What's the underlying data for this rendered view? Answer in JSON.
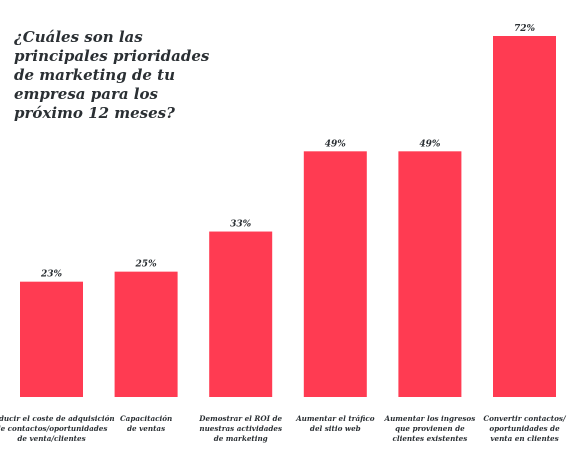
{
  "chart_data": {
    "type": "bar",
    "title": "¿Cuáles son las principales prioridades de marketing de tu empresa para los próximo 12 meses?",
    "xlabel": "",
    "ylabel": "",
    "ylim": [
      0,
      72
    ],
    "grid": false,
    "legend": "none",
    "bar_color": "#ff3b52",
    "text_color": "#2a2f33",
    "categories": [
      [
        "Reducir el coste de adquisición",
        "de contactos/oportunidades",
        "de venta/clientes"
      ],
      [
        "Capacitación",
        "de ventas"
      ],
      [
        "Demostrar el ROI de",
        "nuestras actividades",
        "de marketing"
      ],
      [
        "Aumentar el tráfico",
        "del sitio web"
      ],
      [
        "Aumentar los ingresos",
        "que provienen de",
        "clientes existentes"
      ],
      [
        "Convertir contactos/",
        "oportunidades de",
        "venta en clientes"
      ]
    ],
    "values": [
      23,
      25,
      33,
      49,
      49,
      72
    ],
    "value_labels": [
      "23%",
      "25%",
      "33%",
      "49%",
      "49%",
      "72%"
    ]
  }
}
